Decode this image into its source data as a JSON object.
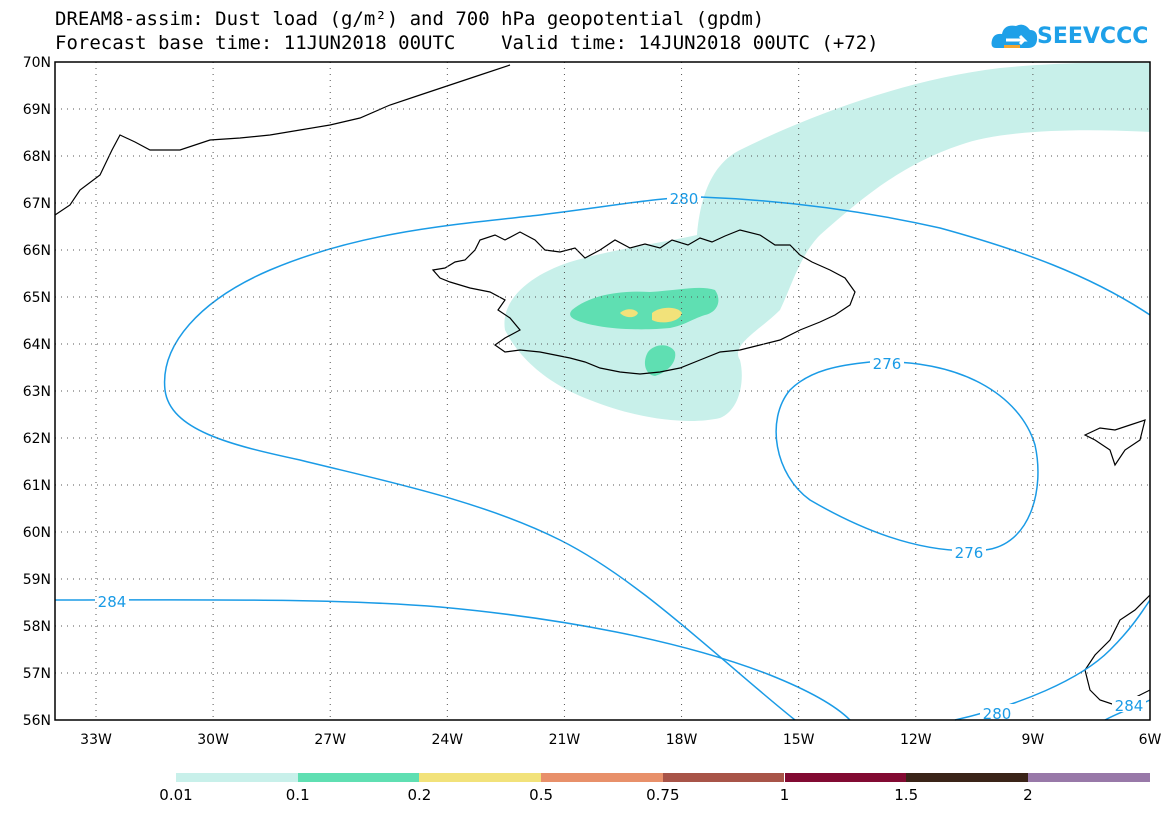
{
  "title": {
    "line1": "DREAM8-assim: Dust load (g/m²) and 700 hPa geopotential (gpdm)",
    "line2": "Forecast base time: 11JUN2018 00UTC    Valid time: 14JUN2018 00UTC (+72)"
  },
  "logo": {
    "text": "SEEVCCC",
    "icon": "cloud-icon"
  },
  "axes": {
    "lat_labels": [
      "70N",
      "69N",
      "68N",
      "67N",
      "66N",
      "65N",
      "64N",
      "63N",
      "62N",
      "61N",
      "60N",
      "59N",
      "58N",
      "57N",
      "56N"
    ],
    "lon_labels": [
      "33W",
      "30W",
      "27W",
      "24W",
      "21W",
      "18W",
      "15W",
      "12W",
      "9W",
      "6W"
    ]
  },
  "contours": {
    "color": "#1a9be6",
    "labels": [
      "280",
      "276",
      "276",
      "284",
      "280",
      "284"
    ]
  },
  "legend": {
    "colors": [
      "#c8f0ea",
      "#5fdfb2",
      "#f2e27a",
      "#e8906a",
      "#a85448",
      "#820a32",
      "#3a2418",
      "#9878a8"
    ],
    "labels": [
      "0.01",
      "0.1",
      "0.2",
      "0.5",
      "0.75",
      "1",
      "1.5",
      "2"
    ]
  }
}
